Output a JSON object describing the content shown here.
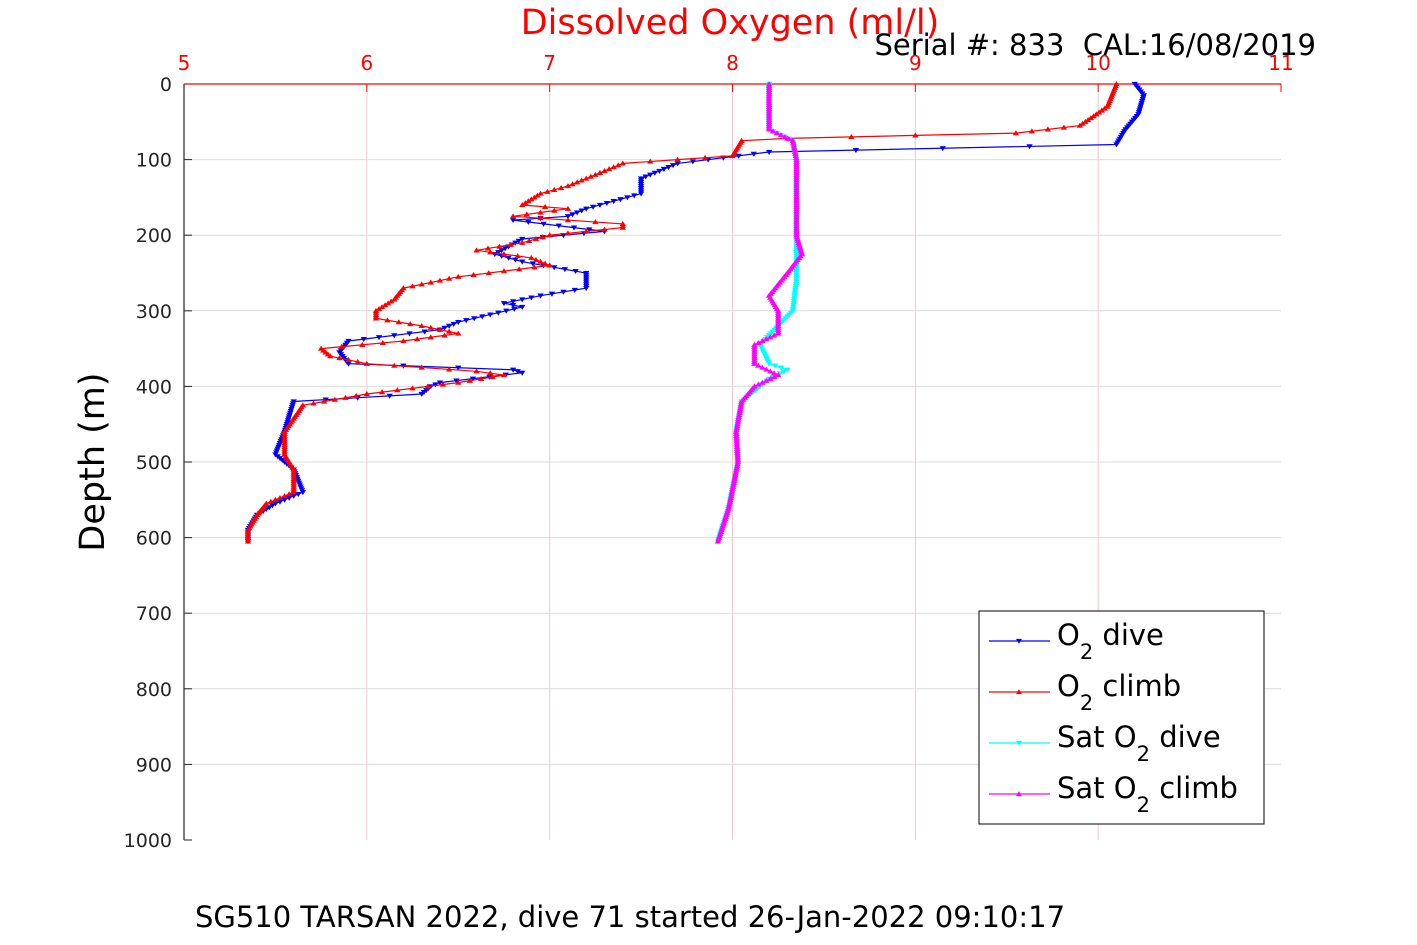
{
  "chart_data": {
    "type": "line",
    "title": "Dissolved Oxygen (ml/l)",
    "annotation": "Serial #: 833  CAL:16/08/2019",
    "caption": "SG510 TARSAN 2022, dive 71 started 26-Jan-2022 09:10:17",
    "xlabel": "",
    "ylabel": "Depth (m)",
    "xlim": [
      5,
      11
    ],
    "ylim": [
      0,
      1000
    ],
    "y_reversed": true,
    "x_axis_position": "top",
    "grid": true,
    "x_ticks": [
      "5",
      "6",
      "7",
      "8",
      "9",
      "10",
      "11"
    ],
    "y_ticks": [
      "0",
      "100",
      "200",
      "300",
      "400",
      "500",
      "600",
      "700",
      "800",
      "900",
      "1000"
    ],
    "legend_position": "bottom-right",
    "colors": {
      "title": "#ff0000",
      "x_ticks": "#ff0000",
      "grid": "#f4c6cc"
    },
    "series": [
      {
        "legend": "O2 dive",
        "legend_main": "O",
        "legend_sub": "2",
        "legend_rest": " dive",
        "color": "#0000ff",
        "marker": "triangle-down",
        "points": [
          [
            10.2,
            0
          ],
          [
            10.25,
            15
          ],
          [
            10.22,
            40
          ],
          [
            10.15,
            60
          ],
          [
            10.1,
            80
          ],
          [
            8.2,
            90
          ],
          [
            7.7,
            105
          ],
          [
            7.5,
            125
          ],
          [
            7.5,
            145
          ],
          [
            7.2,
            165
          ],
          [
            7.1,
            175
          ],
          [
            6.8,
            180
          ],
          [
            7.3,
            195
          ],
          [
            6.85,
            205
          ],
          [
            6.7,
            225
          ],
          [
            6.85,
            235
          ],
          [
            7.2,
            250
          ],
          [
            7.2,
            270
          ],
          [
            6.95,
            280
          ],
          [
            6.75,
            290
          ],
          [
            6.85,
            295
          ],
          [
            6.5,
            315
          ],
          [
            6.4,
            325
          ],
          [
            5.9,
            340
          ],
          [
            5.85,
            355
          ],
          [
            5.9,
            370
          ],
          [
            6.8,
            378
          ],
          [
            6.85,
            382
          ],
          [
            6.4,
            395
          ],
          [
            6.35,
            400
          ],
          [
            6.3,
            410
          ],
          [
            5.6,
            420
          ],
          [
            5.55,
            460
          ],
          [
            5.5,
            490
          ],
          [
            5.6,
            510
          ],
          [
            5.65,
            540
          ],
          [
            5.5,
            555
          ],
          [
            5.4,
            570
          ],
          [
            5.35,
            590
          ],
          [
            5.35,
            605
          ]
        ]
      },
      {
        "legend": "O2 climb",
        "legend_main": "O",
        "legend_sub": "2",
        "legend_rest": " climb",
        "color": "#ff0000",
        "marker": "triangle-up",
        "points": [
          [
            10.1,
            0
          ],
          [
            10.05,
            30
          ],
          [
            9.9,
            55
          ],
          [
            9.55,
            65
          ],
          [
            9.0,
            68
          ],
          [
            8.3,
            72
          ],
          [
            8.05,
            75
          ],
          [
            8.0,
            95
          ],
          [
            7.7,
            100
          ],
          [
            7.4,
            105
          ],
          [
            7.2,
            125
          ],
          [
            7.1,
            135
          ],
          [
            6.95,
            145
          ],
          [
            6.85,
            160
          ],
          [
            7.1,
            165
          ],
          [
            6.95,
            170
          ],
          [
            6.8,
            175
          ],
          [
            7.4,
            185
          ],
          [
            7.4,
            190
          ],
          [
            7.0,
            200
          ],
          [
            6.85,
            210
          ],
          [
            6.6,
            220
          ],
          [
            6.9,
            230
          ],
          [
            7.0,
            240
          ],
          [
            6.5,
            255
          ],
          [
            6.2,
            270
          ],
          [
            6.15,
            285
          ],
          [
            6.05,
            300
          ],
          [
            6.05,
            310
          ],
          [
            6.3,
            320
          ],
          [
            6.5,
            330
          ],
          [
            6.2,
            340
          ],
          [
            5.75,
            350
          ],
          [
            5.8,
            360
          ],
          [
            6.0,
            370
          ],
          [
            6.6,
            380
          ],
          [
            6.75,
            385
          ],
          [
            6.5,
            395
          ],
          [
            6.0,
            410
          ],
          [
            5.65,
            425
          ],
          [
            5.55,
            460
          ],
          [
            5.55,
            490
          ],
          [
            5.6,
            510
          ],
          [
            5.6,
            540
          ],
          [
            5.45,
            555
          ],
          [
            5.4,
            570
          ],
          [
            5.35,
            590
          ],
          [
            5.35,
            605
          ]
        ]
      },
      {
        "legend": "Sat O2 dive",
        "legend_main": "Sat O",
        "legend_sub": "2",
        "legend_rest": " dive",
        "color": "#00ffff",
        "marker": "triangle-down",
        "points": [
          [
            8.2,
            0
          ],
          [
            8.2,
            60
          ],
          [
            8.33,
            75
          ],
          [
            8.35,
            100
          ],
          [
            8.35,
            150
          ],
          [
            8.35,
            200
          ],
          [
            8.35,
            260
          ],
          [
            8.33,
            300
          ],
          [
            8.25,
            320
          ],
          [
            8.15,
            345
          ],
          [
            8.2,
            370
          ],
          [
            8.3,
            378
          ],
          [
            8.2,
            390
          ],
          [
            8.05,
            420
          ],
          [
            8.02,
            460
          ],
          [
            8.03,
            500
          ],
          [
            7.98,
            560
          ],
          [
            7.92,
            605
          ]
        ]
      },
      {
        "legend": "Sat O2 climb",
        "legend_main": "Sat O",
        "legend_sub": "2",
        "legend_rest": " climb",
        "color": "#ff00ff",
        "marker": "triangle-up",
        "points": [
          [
            8.2,
            0
          ],
          [
            8.2,
            60
          ],
          [
            8.33,
            75
          ],
          [
            8.35,
            100
          ],
          [
            8.35,
            150
          ],
          [
            8.35,
            200
          ],
          [
            8.38,
            225
          ],
          [
            8.3,
            250
          ],
          [
            8.2,
            280
          ],
          [
            8.25,
            300
          ],
          [
            8.25,
            330
          ],
          [
            8.12,
            345
          ],
          [
            8.12,
            370
          ],
          [
            8.25,
            385
          ],
          [
            8.12,
            400
          ],
          [
            8.05,
            420
          ],
          [
            8.02,
            460
          ],
          [
            8.03,
            500
          ],
          [
            7.98,
            560
          ],
          [
            7.92,
            605
          ]
        ]
      }
    ]
  }
}
